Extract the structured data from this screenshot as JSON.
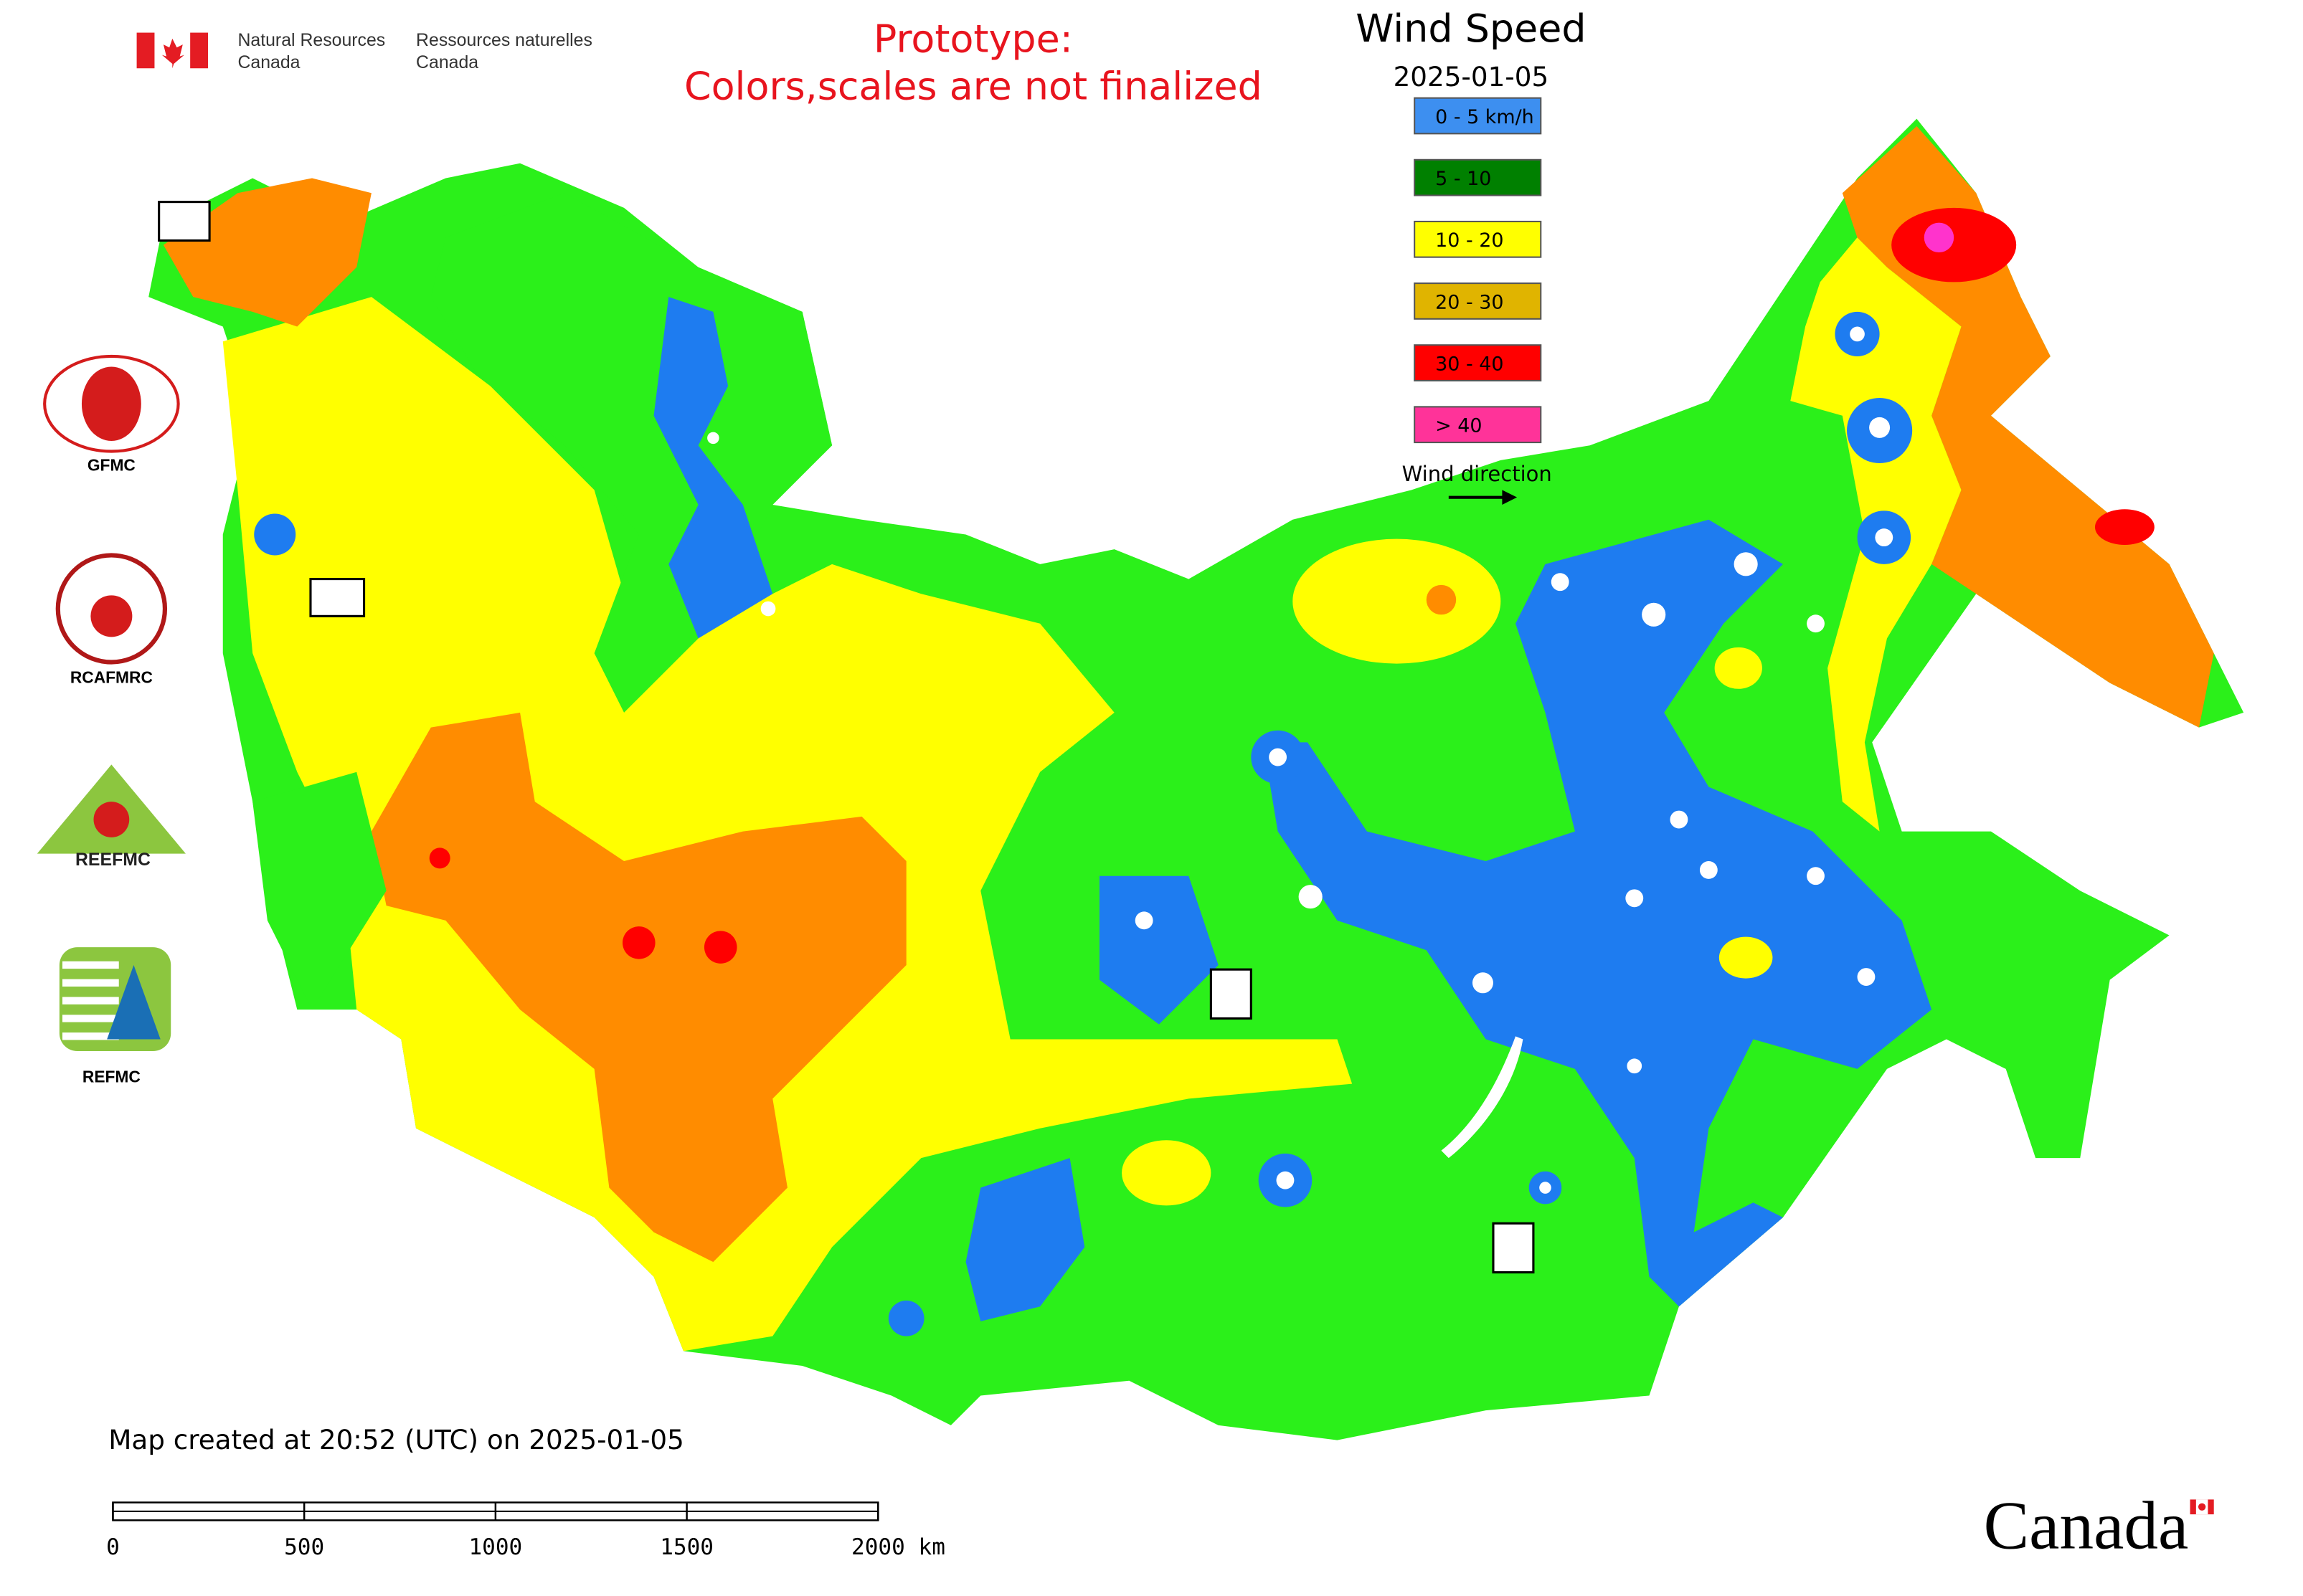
{
  "header": {
    "dept_en_line1": "Natural Resources",
    "dept_en_line2": "Canada",
    "dept_fr_line1": "Ressources naturelles",
    "dept_fr_line2": "Canada"
  },
  "notice": {
    "line1": "Prototype:",
    "line2": "Colors,scales are not finalized"
  },
  "legend": {
    "title": "Wind Speed",
    "date": "2025-01-05",
    "items": [
      {
        "label": "0 - 5 km/h",
        "color": "#3d8ff0"
      },
      {
        "label": "5 - 10",
        "color": "#008000"
      },
      {
        "label": "10 - 20",
        "color": "#ffff00"
      },
      {
        "label": "20 - 30",
        "color": "#e0b400"
      },
      {
        "label": "30 - 40",
        "color": "#ff0000"
      },
      {
        "label": "> 40",
        "color": "#ff3399"
      }
    ],
    "wind_direction": "Wind direction"
  },
  "logos": {
    "gfmc": "GFMC",
    "rcafmrc": "RCAFMRC",
    "reefmc": "REEFMC",
    "refmc": "REFMC"
  },
  "footer": {
    "created": "Map created at 20:52 (UTC) on 2025-01-05"
  },
  "scale_bar": {
    "ticks": [
      "0",
      "500",
      "1000",
      "1500",
      "2000 km"
    ]
  },
  "wordmark": "Canada"
}
